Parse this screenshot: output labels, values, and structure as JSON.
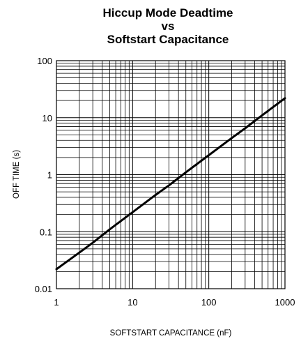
{
  "chart_data": {
    "type": "line",
    "title_lines": [
      "Hiccup Mode Deadtime",
      "vs",
      "Softstart Capacitance"
    ],
    "xlabel": "SOFTSTART CAPACITANCE (nF)",
    "ylabel": "OFF TIME (s)",
    "x_scale": "log",
    "y_scale": "log",
    "xlim": [
      1,
      1000
    ],
    "ylim": [
      0.01,
      100
    ],
    "x_ticks": [
      "1",
      "10",
      "100",
      "1000"
    ],
    "y_ticks": [
      "100",
      "10",
      "1",
      "0.1",
      "0.01"
    ],
    "grid": true,
    "series": [
      {
        "x": [
          1,
          2,
          3,
          5,
          10,
          20,
          30,
          50,
          100,
          200,
          300,
          500,
          1000
        ],
        "y": [
          0.022,
          0.043,
          0.064,
          0.11,
          0.22,
          0.44,
          0.65,
          1.1,
          2.2,
          4.4,
          6.5,
          11,
          22
        ],
        "color": "#000000"
      }
    ]
  }
}
